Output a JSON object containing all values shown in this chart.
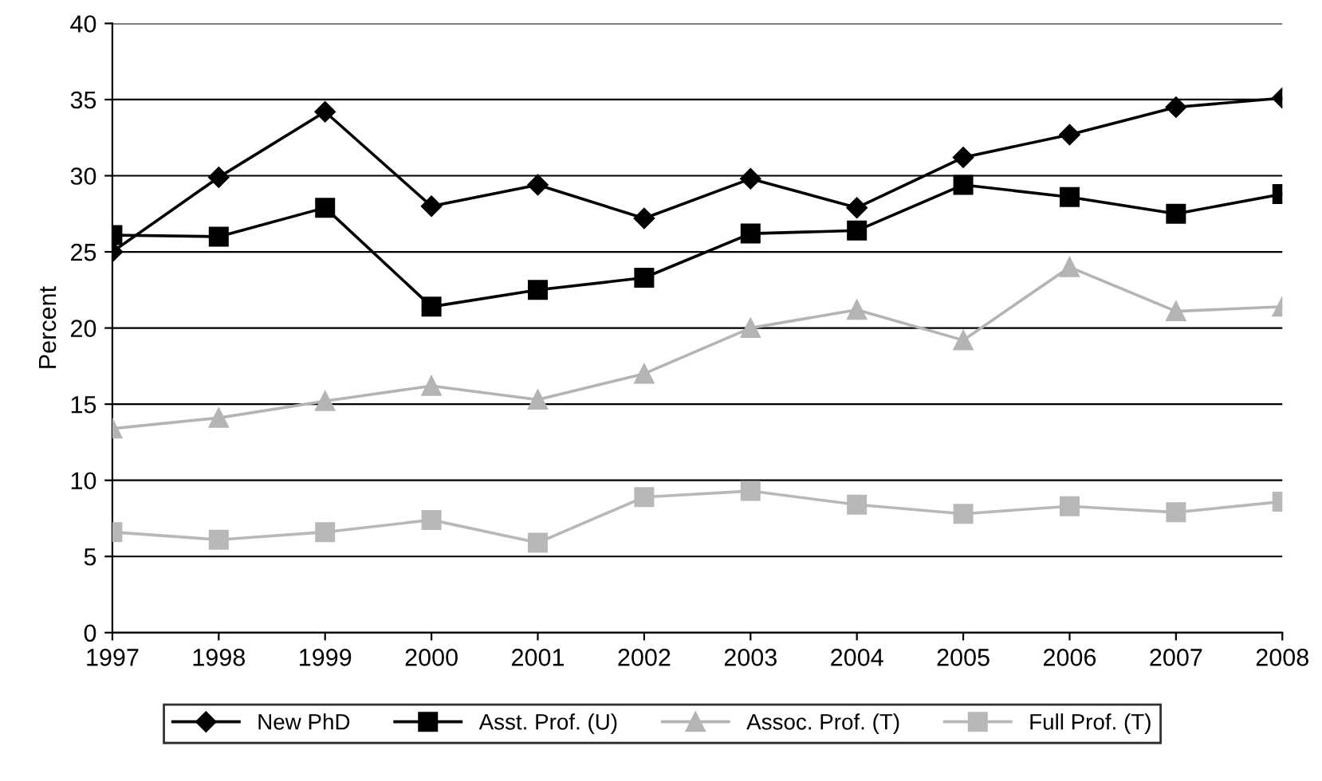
{
  "chart_data": {
    "type": "line",
    "ylabel": "Percent",
    "x": [
      1997,
      1998,
      1999,
      2000,
      2001,
      2002,
      2003,
      2004,
      2005,
      2006,
      2007,
      2008
    ],
    "series": [
      {
        "name": "New PhD",
        "color": "#000000",
        "marker": "diamond",
        "values": [
          25,
          29.9,
          34.2,
          28,
          29.4,
          27.2,
          29.8,
          27.9,
          31.2,
          32.7,
          34.5,
          35.1
        ]
      },
      {
        "name": "Asst. Prof. (U)",
        "color": "#000000",
        "marker": "square",
        "values": [
          26.1,
          26,
          27.9,
          21.4,
          22.5,
          23.3,
          26.2,
          26.4,
          29.4,
          28.6,
          27.5,
          28.8
        ]
      },
      {
        "name": "Assoc. Prof. (T)",
        "color": "#b4b4b4",
        "marker": "triangle",
        "values": [
          13.4,
          14.1,
          15.2,
          16.2,
          15.3,
          17,
          20,
          21.2,
          19.2,
          24,
          21.1,
          21.4
        ]
      },
      {
        "name": "Full Prof. (T)",
        "color": "#b8b8b8",
        "marker": "square",
        "values": [
          6.6,
          6.1,
          6.6,
          7.4,
          5.9,
          8.9,
          9.3,
          8.4,
          7.8,
          8.3,
          7.9,
          8.6
        ]
      }
    ],
    "xlim": [
      1997,
      2008
    ],
    "xticks": [
      1997,
      1998,
      1999,
      2000,
      2001,
      2002,
      2003,
      2004,
      2005,
      2006,
      2007,
      2008
    ],
    "ylim": [
      0,
      40
    ],
    "yticks": [
      0,
      5,
      10,
      15,
      20,
      25,
      30,
      35,
      40
    ],
    "grid": "y",
    "legend": "bottom",
    "line_style": "solid"
  }
}
